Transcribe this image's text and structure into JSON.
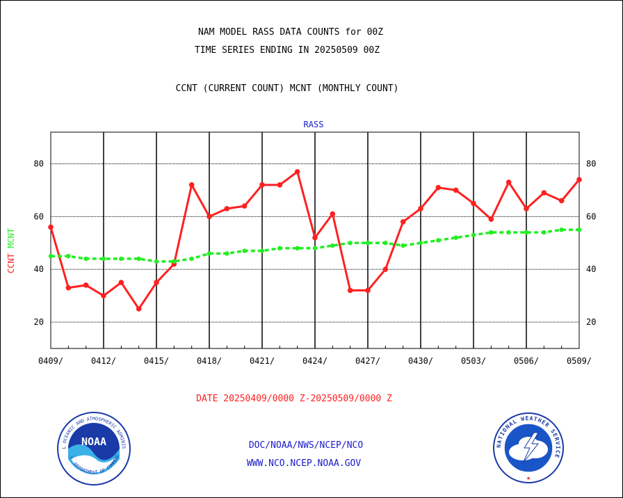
{
  "header": {
    "title_line1": "NAM MODEL RASS DATA COUNTS for 00Z",
    "title_line2": "TIME SERIES ENDING IN 20250509 00Z",
    "subtitle": "CCNT (CURRENT COUNT) MCNT (MONTHLY COUNT)"
  },
  "footer": {
    "date_range": "DATE 20250409/0000 Z-20250509/0000 Z",
    "link1": "DOC/NOAA/NWS/NCEP/NCO",
    "link2": "WWW.NCO.NCEP.NOAA.GOV"
  },
  "logos": {
    "noaa_text": "NOAA",
    "noaa_ring_top": "NATIONAL OCEANIC AND ATMOSPHERIC ADMINISTRATION",
    "noaa_ring_bottom": "U.S. DEPARTMENT OF COMMERCE",
    "nws_ring": "NATIONAL WEATHER SERVICE"
  },
  "colors": {
    "ccnt": "#ff2020",
    "mcnt": "#22ee22",
    "panel_label": "#1a1acc",
    "date_text": "#ff2020",
    "footer_text": "#1a1acc",
    "axes": "#000000"
  },
  "chart_data": {
    "type": "line",
    "title": "RASS",
    "ylabel_series": [
      "CCNT",
      "MCNT"
    ],
    "ylim": [
      10,
      92
    ],
    "yticks": [
      20,
      40,
      60,
      80
    ],
    "xlim": [
      0,
      30
    ],
    "xticks": [
      0,
      3,
      6,
      9,
      12,
      15,
      18,
      21,
      24,
      27,
      30
    ],
    "xtick_labels": [
      "0409/",
      "0412/",
      "0415/",
      "0418/",
      "0421/",
      "0424/",
      "0427/",
      "0430/",
      "0503/",
      "0506/",
      "0509/"
    ],
    "dates": [
      "0409",
      "0410",
      "0411",
      "0412",
      "0413",
      "0414",
      "0415",
      "0416",
      "0417",
      "0418",
      "0419",
      "0420",
      "0421",
      "0422",
      "0423",
      "0424",
      "0425",
      "0426",
      "0427",
      "0428",
      "0429",
      "0430",
      "0501",
      "0502",
      "0503",
      "0504",
      "0505",
      "0506",
      "0507",
      "0508",
      "0509"
    ],
    "grid": true,
    "series": [
      {
        "name": "CCNT",
        "style": "solid",
        "values": [
          56,
          33,
          34,
          30,
          35,
          25,
          35,
          42,
          72,
          60,
          63,
          64,
          72,
          72,
          77,
          52,
          61,
          32,
          32,
          40,
          58,
          63,
          71,
          70,
          65,
          59,
          73,
          63,
          69,
          66,
          74
        ]
      },
      {
        "name": "MCNT",
        "style": "dashed",
        "values": [
          45,
          45,
          44,
          44,
          44,
          44,
          43,
          43,
          44,
          46,
          46,
          47,
          47,
          48,
          48,
          48,
          49,
          50,
          50,
          50,
          49,
          50,
          51,
          52,
          53,
          54,
          54,
          54,
          54,
          55,
          55
        ]
      }
    ]
  }
}
